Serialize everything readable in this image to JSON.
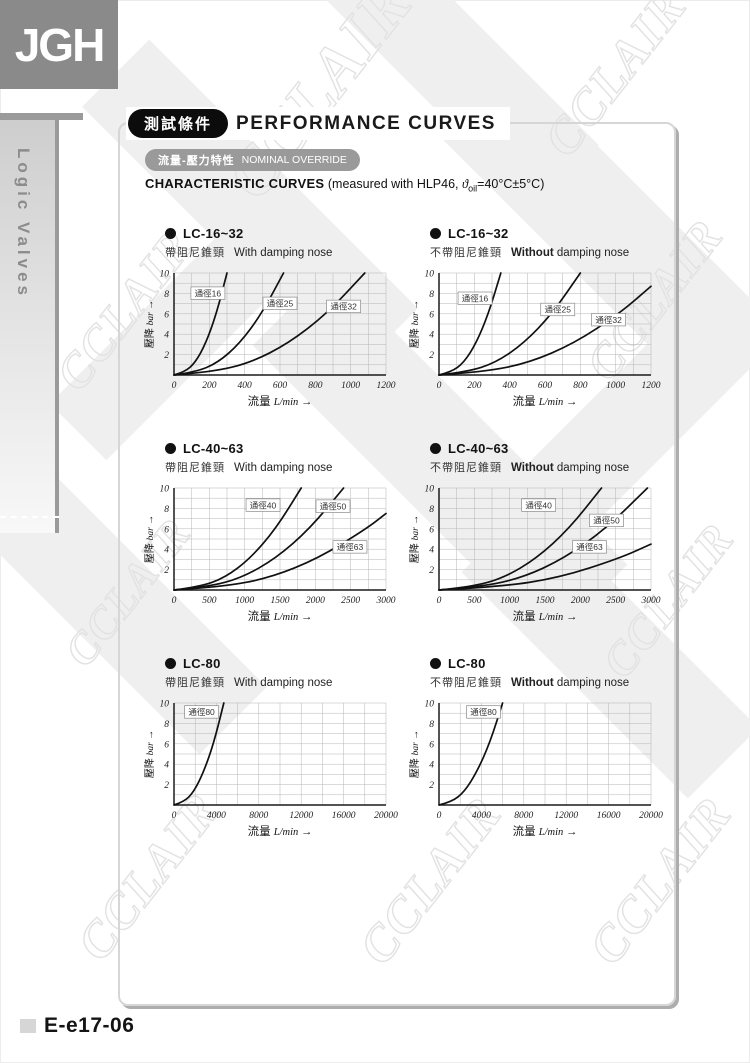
{
  "page": {
    "logo_text": "JGH",
    "sidebar_label": "Logic Valves",
    "watermark_text": "CCLAIR"
  },
  "header": {
    "zh_badge": "測試條件",
    "title": "PERFORMANCE CURVES",
    "sub_badge_zh": "流量-壓力特性",
    "sub_badge_en": "NOMINAL OVERRIDE",
    "curves_bold": "CHARACTERISTIC CURVES",
    "curves_pre": " (measured with HLP46, ",
    "curves_symbol": "ϑ",
    "curves_sub": "oil",
    "curves_post": "=40°C±5°C)"
  },
  "footer": {
    "page_code": "E-e17-06"
  },
  "chart_data": [
    {
      "type": "line",
      "id": "lc16-32-with",
      "title": "LC-16~32",
      "subtitle_zh": "帶阻尼錐頸",
      "subtitle_en_bold": "",
      "subtitle_en": "With damping nose",
      "xlabel_zh": "流量",
      "xlabel_unit": "L/min",
      "ylabel_zh": "壓降",
      "ylabel_unit": "bar",
      "arrow": "→",
      "xlim": [
        0,
        1200
      ],
      "ylim": [
        0,
        10
      ],
      "xticks": [
        0,
        200,
        400,
        600,
        800,
        1000,
        1200
      ],
      "yticks": [
        2,
        4,
        6,
        8,
        10
      ],
      "x_minor_divisions": 12,
      "y_minor_divisions": 10,
      "grid": true,
      "series": [
        {
          "name": "通徑16",
          "points": [
            [
              0,
              0
            ],
            [
              60,
              0.3
            ],
            [
              120,
              1.2
            ],
            [
              180,
              3.1
            ],
            [
              240,
              6
            ],
            [
              300,
              10
            ]
          ],
          "label_pos": [
            0.16,
            8.0
          ]
        },
        {
          "name": "通徑25",
          "points": [
            [
              0,
              0
            ],
            [
              124,
              0.3
            ],
            [
              248,
              1.2
            ],
            [
              372,
              3.1
            ],
            [
              496,
              6
            ],
            [
              620,
              10
            ]
          ],
          "label_pos": [
            0.5,
            7.0
          ]
        },
        {
          "name": "通徑32",
          "points": [
            [
              0,
              0
            ],
            [
              216,
              0.3
            ],
            [
              432,
              1.2
            ],
            [
              648,
              3.1
            ],
            [
              864,
              6
            ],
            [
              1080,
              10
            ]
          ],
          "label_pos": [
            0.8,
            6.7
          ]
        }
      ]
    },
    {
      "type": "line",
      "id": "lc16-32-without",
      "title": "LC-16~32",
      "subtitle_zh": "不帶阻尼錐頸",
      "subtitle_en_bold": "Without",
      "subtitle_en": " damping nose",
      "xlabel_zh": "流量",
      "xlabel_unit": "L/min",
      "ylabel_zh": "壓降",
      "ylabel_unit": "bar",
      "arrow": "→",
      "xlim": [
        0,
        1200
      ],
      "ylim": [
        0,
        10
      ],
      "xticks": [
        0,
        200,
        400,
        600,
        800,
        1000,
        1200
      ],
      "yticks": [
        2,
        4,
        6,
        8,
        10
      ],
      "x_minor_divisions": 12,
      "y_minor_divisions": 10,
      "grid": true,
      "series": [
        {
          "name": "通徑16",
          "points": [
            [
              0,
              0
            ],
            [
              70,
              0.3
            ],
            [
              140,
              1.2
            ],
            [
              210,
              3.1
            ],
            [
              280,
              6
            ],
            [
              350,
              10
            ]
          ],
          "label_pos": [
            0.17,
            7.5
          ]
        },
        {
          "name": "通徑25",
          "points": [
            [
              0,
              0
            ],
            [
              160,
              0.3
            ],
            [
              320,
              1.2
            ],
            [
              480,
              3.1
            ],
            [
              640,
              6
            ],
            [
              800,
              10
            ]
          ],
          "label_pos": [
            0.56,
            6.4
          ]
        },
        {
          "name": "通徑32",
          "points": [
            [
              0,
              0
            ],
            [
              255,
              0.3
            ],
            [
              510,
              1.2
            ],
            [
              765,
              3.1
            ],
            [
              1020,
              6
            ],
            [
              1200,
              8.7
            ]
          ],
          "label_pos": [
            0.8,
            5.4
          ]
        }
      ]
    },
    {
      "type": "line",
      "id": "lc40-63-with",
      "title": "LC-40~63",
      "subtitle_zh": "帶阻尼錐頸",
      "subtitle_en_bold": "",
      "subtitle_en": "With damping nose",
      "xlabel_zh": "流量",
      "xlabel_unit": "L/min",
      "ylabel_zh": "壓降",
      "ylabel_unit": "bar",
      "arrow": "→",
      "xlim": [
        0,
        3000
      ],
      "ylim": [
        0,
        10
      ],
      "xticks": [
        0,
        500,
        1000,
        1500,
        2000,
        2500,
        3000
      ],
      "yticks": [
        2,
        4,
        6,
        8,
        10
      ],
      "x_minor_divisions": 12,
      "y_minor_divisions": 10,
      "grid": true,
      "series": [
        {
          "name": "通徑40",
          "points": [
            [
              0,
              0
            ],
            [
              360,
              0.3
            ],
            [
              720,
              1.2
            ],
            [
              1080,
              3.1
            ],
            [
              1440,
              6
            ],
            [
              1800,
              10
            ]
          ],
          "label_pos": [
            0.42,
            8.3
          ]
        },
        {
          "name": "通徑50",
          "points": [
            [
              0,
              0
            ],
            [
              480,
              0.3
            ],
            [
              960,
              1.2
            ],
            [
              1440,
              3.1
            ],
            [
              1920,
              6
            ],
            [
              2400,
              10
            ]
          ],
          "label_pos": [
            0.75,
            8.2
          ]
        },
        {
          "name": "通徑63",
          "points": [
            [
              0,
              0
            ],
            [
              680,
              0.3
            ],
            [
              1360,
              1.2
            ],
            [
              2040,
              3.1
            ],
            [
              2720,
              6
            ],
            [
              3000,
              7.5
            ]
          ],
          "label_pos": [
            0.83,
            4.2
          ]
        }
      ]
    },
    {
      "type": "line",
      "id": "lc40-63-without",
      "title": "LC-40~63",
      "subtitle_zh": "不帶阻尼錐頸",
      "subtitle_en_bold": "Without",
      "subtitle_en": " damping nose",
      "xlabel_zh": "流量",
      "xlabel_unit": "L/min",
      "ylabel_zh": "壓降",
      "ylabel_unit": "bar",
      "arrow": "→",
      "xlim": [
        0,
        3000
      ],
      "ylim": [
        0,
        10
      ],
      "xticks": [
        0,
        500,
        1000,
        1500,
        2000,
        2500,
        3000
      ],
      "yticks": [
        2,
        4,
        6,
        8,
        10
      ],
      "x_minor_divisions": 12,
      "y_minor_divisions": 10,
      "grid": true,
      "series": [
        {
          "name": "通徑40",
          "points": [
            [
              0,
              0
            ],
            [
              460,
              0.3
            ],
            [
              920,
              1.2
            ],
            [
              1380,
              3.1
            ],
            [
              1840,
              6
            ],
            [
              2300,
              10
            ]
          ],
          "label_pos": [
            0.47,
            8.3
          ]
        },
        {
          "name": "通徑50",
          "points": [
            [
              0,
              0
            ],
            [
              590,
              0.3
            ],
            [
              1180,
              1.2
            ],
            [
              1770,
              3.1
            ],
            [
              2360,
              6
            ],
            [
              2950,
              10
            ]
          ],
          "label_pos": [
            0.79,
            6.8
          ]
        },
        {
          "name": "通徑63",
          "points": [
            [
              0,
              0
            ],
            [
              850,
              0.3
            ],
            [
              1700,
              1.2
            ],
            [
              2550,
              3.1
            ],
            [
              3000,
              4.5
            ]
          ],
          "label_pos": [
            0.71,
            4.2
          ]
        }
      ]
    },
    {
      "type": "line",
      "id": "lc80-with",
      "title": "LC-80",
      "subtitle_zh": "帶阻尼錐頸",
      "subtitle_en_bold": "",
      "subtitle_en": "With damping nose",
      "xlabel_zh": "流量",
      "xlabel_unit": "L/min",
      "ylabel_zh": "壓降",
      "ylabel_unit": "bar",
      "arrow": "→",
      "xlim": [
        0,
        20000
      ],
      "ylim": [
        0,
        10
      ],
      "xticks": [
        0,
        4000,
        8000,
        12000,
        16000,
        20000
      ],
      "yticks": [
        2,
        4,
        6,
        8,
        10
      ],
      "x_minor_divisions": 10,
      "y_minor_divisions": 10,
      "grid": true,
      "series": [
        {
          "name": "通徑80",
          "points": [
            [
              0,
              0
            ],
            [
              940,
              0.3
            ],
            [
              1880,
              1.3
            ],
            [
              2820,
              3.3
            ],
            [
              3760,
              6.1
            ],
            [
              4700,
              10
            ]
          ],
          "label_pos": [
            0.13,
            9.1
          ]
        }
      ]
    },
    {
      "type": "line",
      "id": "lc80-without",
      "title": "LC-80",
      "subtitle_zh": "不帶阻尼錐頸",
      "subtitle_en_bold": "Without",
      "subtitle_en": " damping nose",
      "xlabel_zh": "流量",
      "xlabel_unit": "L/min",
      "ylabel_zh": "壓降",
      "ylabel_unit": "bar",
      "arrow": "→",
      "xlim": [
        0,
        20000
      ],
      "ylim": [
        0,
        10
      ],
      "xticks": [
        0,
        4000,
        8000,
        12000,
        16000,
        20000
      ],
      "yticks": [
        2,
        4,
        6,
        8,
        10
      ],
      "x_minor_divisions": 10,
      "y_minor_divisions": 10,
      "grid": true,
      "series": [
        {
          "name": "通徑80",
          "points": [
            [
              0,
              0
            ],
            [
              1200,
              0.3
            ],
            [
              2400,
              1.3
            ],
            [
              3600,
              3.3
            ],
            [
              4800,
              6.1
            ],
            [
              6000,
              10
            ]
          ],
          "label_pos": [
            0.21,
            9.1
          ]
        }
      ]
    }
  ]
}
